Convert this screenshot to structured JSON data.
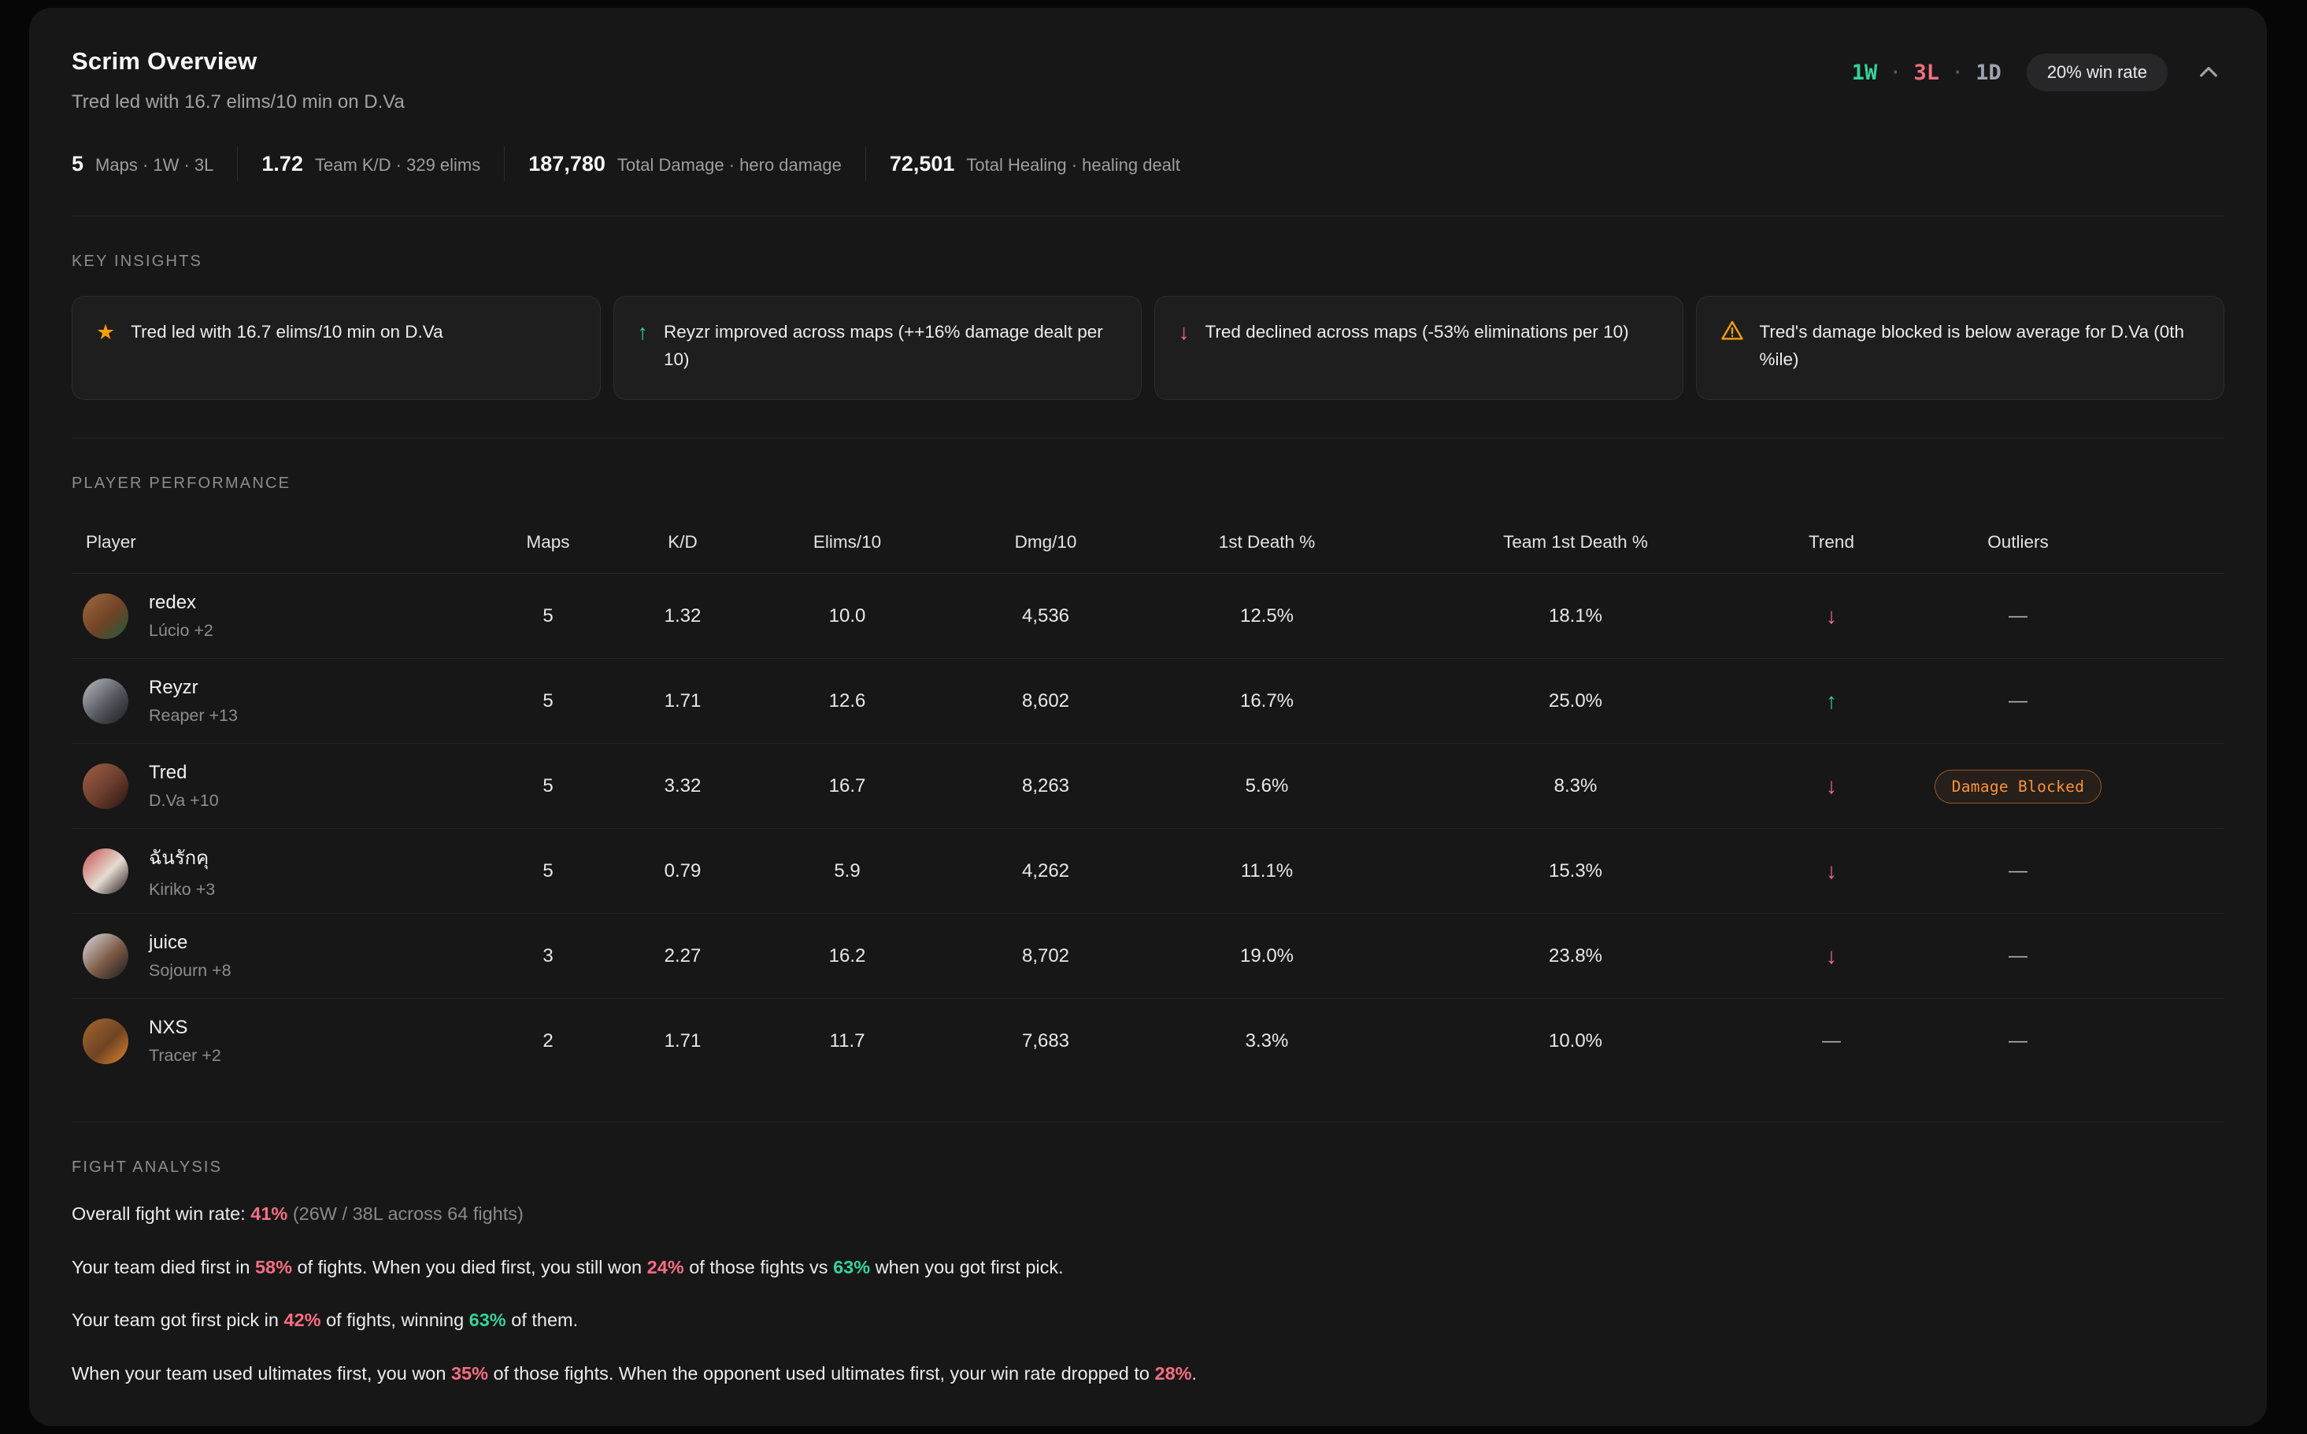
{
  "header": {
    "title": "Scrim Overview",
    "subtitle": "Tred led with 16.7 elims/10 min on D.Va",
    "record": {
      "wins": "1W",
      "losses": "3L",
      "draws": "1D",
      "separator": "·"
    },
    "win_rate_badge": "20% win rate"
  },
  "summary_stats": [
    {
      "value": "5",
      "label": "Maps · 1W · 3L"
    },
    {
      "value": "1.72",
      "label": "Team K/D · 329 elims"
    },
    {
      "value": "187,780",
      "label": "Total Damage · hero damage"
    },
    {
      "value": "72,501",
      "label": "Total Healing · healing dealt"
    }
  ],
  "key_insights": {
    "label": "KEY INSIGHTS",
    "items": [
      {
        "icon": "star",
        "icon_color": "#f59e0b",
        "text": "Tred led with 16.7 elims/10 min on D.Va"
      },
      {
        "icon": "arrow-up",
        "icon_color": "#34d399",
        "text": "Reyzr improved across maps (++16% damage dealt per 10)"
      },
      {
        "icon": "arrow-down",
        "icon_color": "#f66e84",
        "text": "Tred declined across maps (-53% eliminations per 10)"
      },
      {
        "icon": "warning",
        "icon_color": "#f59e0b",
        "text": "Tred's damage blocked is below average for D.Va (0th %ile)"
      }
    ]
  },
  "player_performance": {
    "label": "PLAYER PERFORMANCE",
    "columns": [
      "Player",
      "Maps",
      "K/D",
      "Elims/10",
      "Dmg/10",
      "1st Death %",
      "Team 1st Death %",
      "Trend",
      "Outliers"
    ],
    "empty_marker": "—",
    "rows": [
      {
        "name": "redex",
        "hero": "Lúcio +2",
        "maps": "5",
        "kd": "1.32",
        "elims10": "10.0",
        "dmg10": "4,536",
        "first_death": "12.5%",
        "team_first_death": "18.1%",
        "trend": "down",
        "outlier_badge": null,
        "avatar_colors": [
          "#a06a3f",
          "#6f4326",
          "#1d5c3d"
        ]
      },
      {
        "name": "Reyzr",
        "hero": "Reaper +13",
        "maps": "5",
        "kd": "1.71",
        "elims10": "12.6",
        "dmg10": "8,602",
        "first_death": "16.7%",
        "team_first_death": "25.0%",
        "trend": "up",
        "outlier_badge": null,
        "avatar_colors": [
          "#b8bdc3",
          "#54585e",
          "#191a1c"
        ]
      },
      {
        "name": "Tred",
        "hero": "D.Va +10",
        "maps": "5",
        "kd": "3.32",
        "elims10": "16.7",
        "dmg10": "8,263",
        "first_death": "5.6%",
        "team_first_death": "8.3%",
        "trend": "down",
        "outlier_badge": "Damage Blocked",
        "avatar_colors": [
          "#9c6047",
          "#6a3c2c",
          "#241511"
        ]
      },
      {
        "name": "ฉันรักคุ",
        "hero": "Kiriko +3",
        "maps": "5",
        "kd": "0.79",
        "elims10": "5.9",
        "dmg10": "4,262",
        "first_death": "11.1%",
        "team_first_death": "15.3%",
        "trend": "down",
        "outlier_badge": null,
        "avatar_colors": [
          "#c74f4f",
          "#e4dcd1",
          "#221418"
        ]
      },
      {
        "name": "juice",
        "hero": "Sojourn +8",
        "maps": "3",
        "kd": "2.27",
        "elims10": "16.2",
        "dmg10": "8,702",
        "first_death": "19.0%",
        "team_first_death": "23.8%",
        "trend": "down",
        "outlier_badge": null,
        "avatar_colors": [
          "#dcdce2",
          "#7c5a45",
          "#181920"
        ]
      },
      {
        "name": "NXS",
        "hero": "Tracer +2",
        "maps": "2",
        "kd": "1.71",
        "elims10": "11.7",
        "dmg10": "7,683",
        "first_death": "3.3%",
        "team_first_death": "10.0%",
        "trend": "none",
        "outlier_badge": null,
        "avatar_colors": [
          "#a3672f",
          "#6f4423",
          "#e0862c"
        ]
      }
    ]
  },
  "fight_analysis": {
    "label": "FIGHT ANALYSIS",
    "paragraphs": [
      [
        {
          "t": "Overall fight win rate: "
        },
        {
          "t": "41%",
          "s": "red"
        },
        {
          "t": " (26W / 38L across 64 fights)",
          "s": "muted"
        }
      ],
      [
        {
          "t": "Your team died first in "
        },
        {
          "t": "58%",
          "s": "red"
        },
        {
          "t": " of fights. When you died first, you still won "
        },
        {
          "t": "24%",
          "s": "red"
        },
        {
          "t": " of those fights vs "
        },
        {
          "t": "63%",
          "s": "green"
        },
        {
          "t": " when you got first pick."
        }
      ],
      [
        {
          "t": "Your team got first pick in "
        },
        {
          "t": "42%",
          "s": "red"
        },
        {
          "t": " of fights, winning "
        },
        {
          "t": "63%",
          "s": "green"
        },
        {
          "t": " of them."
        }
      ],
      [
        {
          "t": "When your team used ultimates first, you won "
        },
        {
          "t": "35%",
          "s": "red"
        },
        {
          "t": " of those fights. When the opponent used ultimates first, your win rate dropped to "
        },
        {
          "t": "28%",
          "s": "red"
        },
        {
          "t": "."
        }
      ]
    ]
  },
  "colors": {
    "green": "#34d399",
    "red": "#f66e84",
    "warning_orange": "#f59e0b",
    "badge_orange": "#fb923c",
    "card_bg": "#171717",
    "page_bg": "#060606"
  }
}
